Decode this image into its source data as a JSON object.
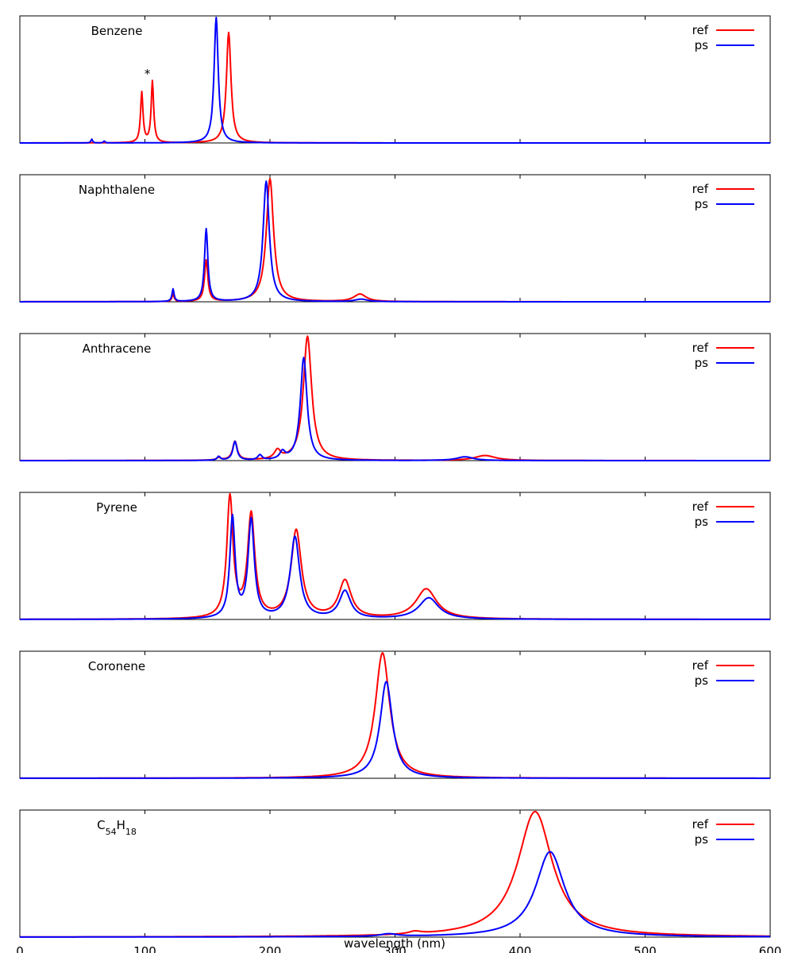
{
  "chart_data": {
    "type": "line",
    "xlabel": "wavelength (nm)",
    "xlim": [
      0,
      600
    ],
    "x_ticks": [
      0,
      100,
      200,
      300,
      400,
      500,
      600
    ],
    "y_tick_labels": false,
    "legend_position": "top-right",
    "series_styles": {
      "ref": "#ff0000",
      "ps": "#0000ff"
    },
    "panels": [
      {
        "title": "Benzene",
        "annotation": "*",
        "annotation_at": 102,
        "ymax": 1.0,
        "series": [
          {
            "name": "ref",
            "peaks": [
              [
                97.5,
                0.4,
                1.2
              ],
              [
                106,
                0.49,
                1.2
              ],
              [
                167,
                0.88,
                2.2
              ]
            ]
          },
          {
            "name": "ps",
            "peaks": [
              [
                57.5,
                0.03,
                0.8
              ],
              [
                67.5,
                0.015,
                0.8
              ],
              [
                157,
                1.0,
                2.0
              ]
            ]
          }
        ]
      },
      {
        "title": "Naphthalene",
        "ymax": 1.0,
        "series": [
          {
            "name": "ref",
            "peaks": [
              [
                122.5,
                0.06,
                1.0
              ],
              [
                149,
                0.33,
                1.6
              ],
              [
                200,
                0.98,
                3.5
              ],
              [
                272,
                0.06,
                6.0
              ]
            ]
          },
          {
            "name": "ps",
            "peaks": [
              [
                122.5,
                0.1,
                1.0
              ],
              [
                149,
                0.58,
                1.6
              ],
              [
                197,
                0.96,
                3.0
              ],
              [
                273,
                0.02,
                6.0
              ]
            ]
          }
        ]
      },
      {
        "title": "Anthracene",
        "ymax": 1.0,
        "series": [
          {
            "name": "ref",
            "peaks": [
              [
                159,
                0.02,
                2.0
              ],
              [
                172,
                0.15,
                2.2
              ],
              [
                206,
                0.07,
                3.0
              ],
              [
                230,
                0.99,
                4.0
              ],
              [
                372,
                0.04,
                10.0
              ]
            ]
          },
          {
            "name": "ps",
            "peaks": [
              [
                159,
                0.03,
                1.5
              ],
              [
                172,
                0.15,
                2.0
              ],
              [
                192,
                0.04,
                2.0
              ],
              [
                210,
                0.06,
                2.5
              ],
              [
                227,
                0.82,
                3.2
              ],
              [
                356,
                0.03,
                8.0
              ]
            ]
          }
        ]
      },
      {
        "title": "Pyrene",
        "ymax": 1.0,
        "series": [
          {
            "name": "ref",
            "peaks": [
              [
                168,
                0.96,
                3.0
              ],
              [
                185,
                0.82,
                3.5
              ],
              [
                221,
                0.7,
                5.0
              ],
              [
                260,
                0.3,
                6.0
              ],
              [
                325,
                0.24,
                10.0
              ]
            ]
          },
          {
            "name": "ps",
            "peaks": [
              [
                170,
                0.8,
                2.5
              ],
              [
                185,
                0.78,
                3.0
              ],
              [
                220,
                0.65,
                4.5
              ],
              [
                260,
                0.22,
                5.5
              ],
              [
                327,
                0.17,
                9.5
              ]
            ]
          }
        ]
      },
      {
        "title": "Coronene",
        "ymax": 1.0,
        "series": [
          {
            "name": "ref",
            "peaks": [
              [
                290,
                1.0,
                7.0
              ]
            ]
          },
          {
            "name": "ps",
            "peaks": [
              [
                293,
                0.77,
                6.0
              ]
            ]
          }
        ]
      },
      {
        "title": "C54H18",
        "title_parts": [
          [
            "C",
            ""
          ],
          [
            "54",
            "sub"
          ],
          [
            "H",
            ""
          ],
          [
            "18",
            "sub"
          ]
        ],
        "ymax": 1.0,
        "series": [
          {
            "name": "ref",
            "peaks": [
              [
                316,
                0.02,
                6.0
              ],
              [
                412,
                1.0,
                17.0
              ]
            ]
          },
          {
            "name": "ps",
            "peaks": [
              [
                295,
                0.02,
                8.0
              ],
              [
                424,
                0.68,
                14.0
              ]
            ]
          }
        ]
      }
    ]
  }
}
